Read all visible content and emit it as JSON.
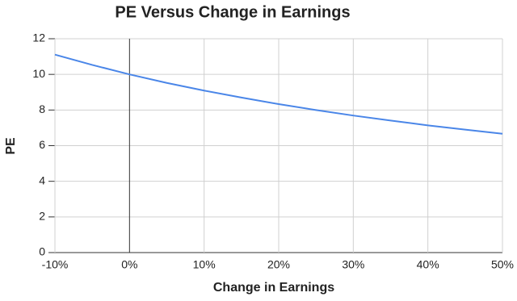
{
  "chart_data": {
    "type": "line",
    "title": "PE Versus Change in Earnings",
    "x_label": "Change in Earnings",
    "y_label": "PE",
    "x": [
      -10,
      -5,
      0,
      5,
      10,
      15,
      20,
      25,
      30,
      35,
      40,
      45,
      50
    ],
    "series": [
      {
        "name": "PE",
        "color": "#4a86e8",
        "values": [
          11.11,
          10.53,
          10,
          9.52,
          9.09,
          8.7,
          8.33,
          8,
          7.69,
          7.41,
          7.14,
          6.9,
          6.67
        ]
      }
    ],
    "xlim": [
      -10,
      50
    ],
    "xticks": [
      {
        "value": -10,
        "label": "-10%"
      },
      {
        "value": 0,
        "label": "0%"
      },
      {
        "value": 10,
        "label": "10%"
      },
      {
        "value": 20,
        "label": "20%"
      },
      {
        "value": 30,
        "label": "30%"
      },
      {
        "value": 40,
        "label": "40%"
      },
      {
        "value": 50,
        "label": "50%"
      }
    ],
    "ylim": [
      0,
      12
    ],
    "yticks": [
      0,
      2,
      4,
      6,
      8,
      10,
      12
    ],
    "grid": true
  }
}
